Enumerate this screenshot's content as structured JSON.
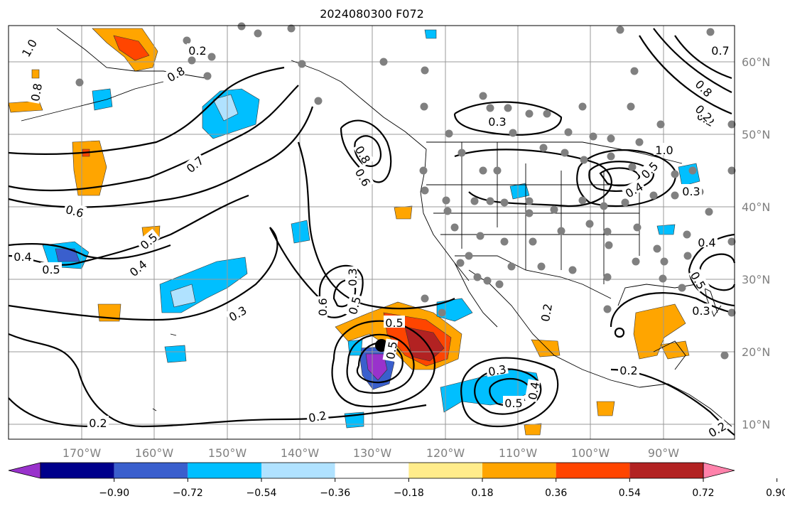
{
  "title": "2024080300 F072",
  "map": {
    "lat_labels": [
      "60°N",
      "50°N",
      "40°N",
      "30°N",
      "20°N",
      "10°N"
    ],
    "lon_labels": [
      "170°W",
      "160°W",
      "150°W",
      "140°W",
      "130°W",
      "120°W",
      "110°W",
      "100°W",
      "90°W"
    ],
    "contour_labels": [
      "1.0",
      "0.8",
      "0.2",
      "0.8",
      "0.7",
      "0.6",
      "0.5",
      "0.4",
      "0.5",
      "0.4",
      "0.3",
      "0.3",
      "0.2",
      "0.2",
      "0.8",
      "0.6",
      "0.5",
      "0.5",
      "0.5",
      "0.3",
      "0.5",
      "0.4",
      "0.2",
      "0.3",
      "0.5",
      "0.4",
      "0.3",
      "0.2",
      "0.3",
      "0.2",
      "0.4",
      "0.5",
      "0.7",
      "0.8",
      "0.2",
      "1.0",
      "0.6",
      "0.2"
    ],
    "colors": {
      "land_border": "#000000",
      "grid": "#999999",
      "station": "#808080",
      "storm_center": "#000000"
    }
  },
  "colorbar": {
    "ticks": [
      "−0.90",
      "−0.72",
      "−0.54",
      "−0.36",
      "−0.18",
      "0.18",
      "0.36",
      "0.54",
      "0.72",
      "0.90"
    ],
    "colors": [
      "#9932cc",
      "#00008b",
      "#3a5fcd",
      "#00bfff",
      "#b0e2ff",
      "#ffffff",
      "#ffec8b",
      "#ffa500",
      "#ff4500",
      "#b22222",
      "#ff82ab"
    ]
  }
}
